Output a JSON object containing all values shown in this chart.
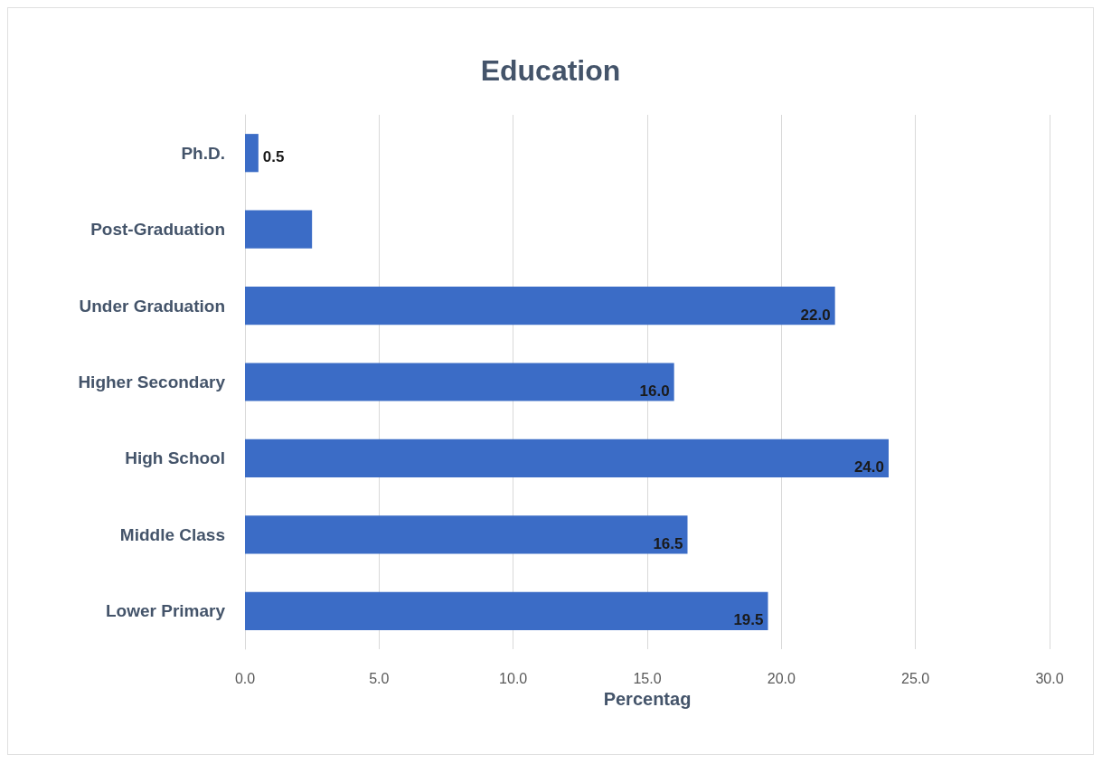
{
  "chart_data": {
    "type": "bar",
    "orientation": "horizontal",
    "title": "Education",
    "xlabel": "Percentag",
    "categories": [
      "Ph.D.",
      "Post-Graduation",
      "Under Graduation",
      "Higher Secondary",
      "High School",
      "Middle Class",
      "Lower Primary"
    ],
    "values": [
      0.5,
      2.5,
      22.0,
      16.0,
      24.0,
      16.5,
      19.5
    ],
    "value_labels": [
      "0.5",
      null,
      "22.0",
      "16.0",
      "24.0",
      "16.5",
      "19.5"
    ],
    "color": "#3b6cc6",
    "xlim": [
      0,
      30
    ],
    "xticks": [
      {
        "value": 0,
        "label": "0.0"
      },
      {
        "value": 5,
        "label": "5.0"
      },
      {
        "value": 10,
        "label": "10.0"
      },
      {
        "value": 15,
        "label": "15.0"
      },
      {
        "value": 20,
        "label": "20.0"
      },
      {
        "value": 25,
        "label": "25.0"
      },
      {
        "value": 30,
        "label": "30.0"
      }
    ],
    "grid": "x"
  }
}
